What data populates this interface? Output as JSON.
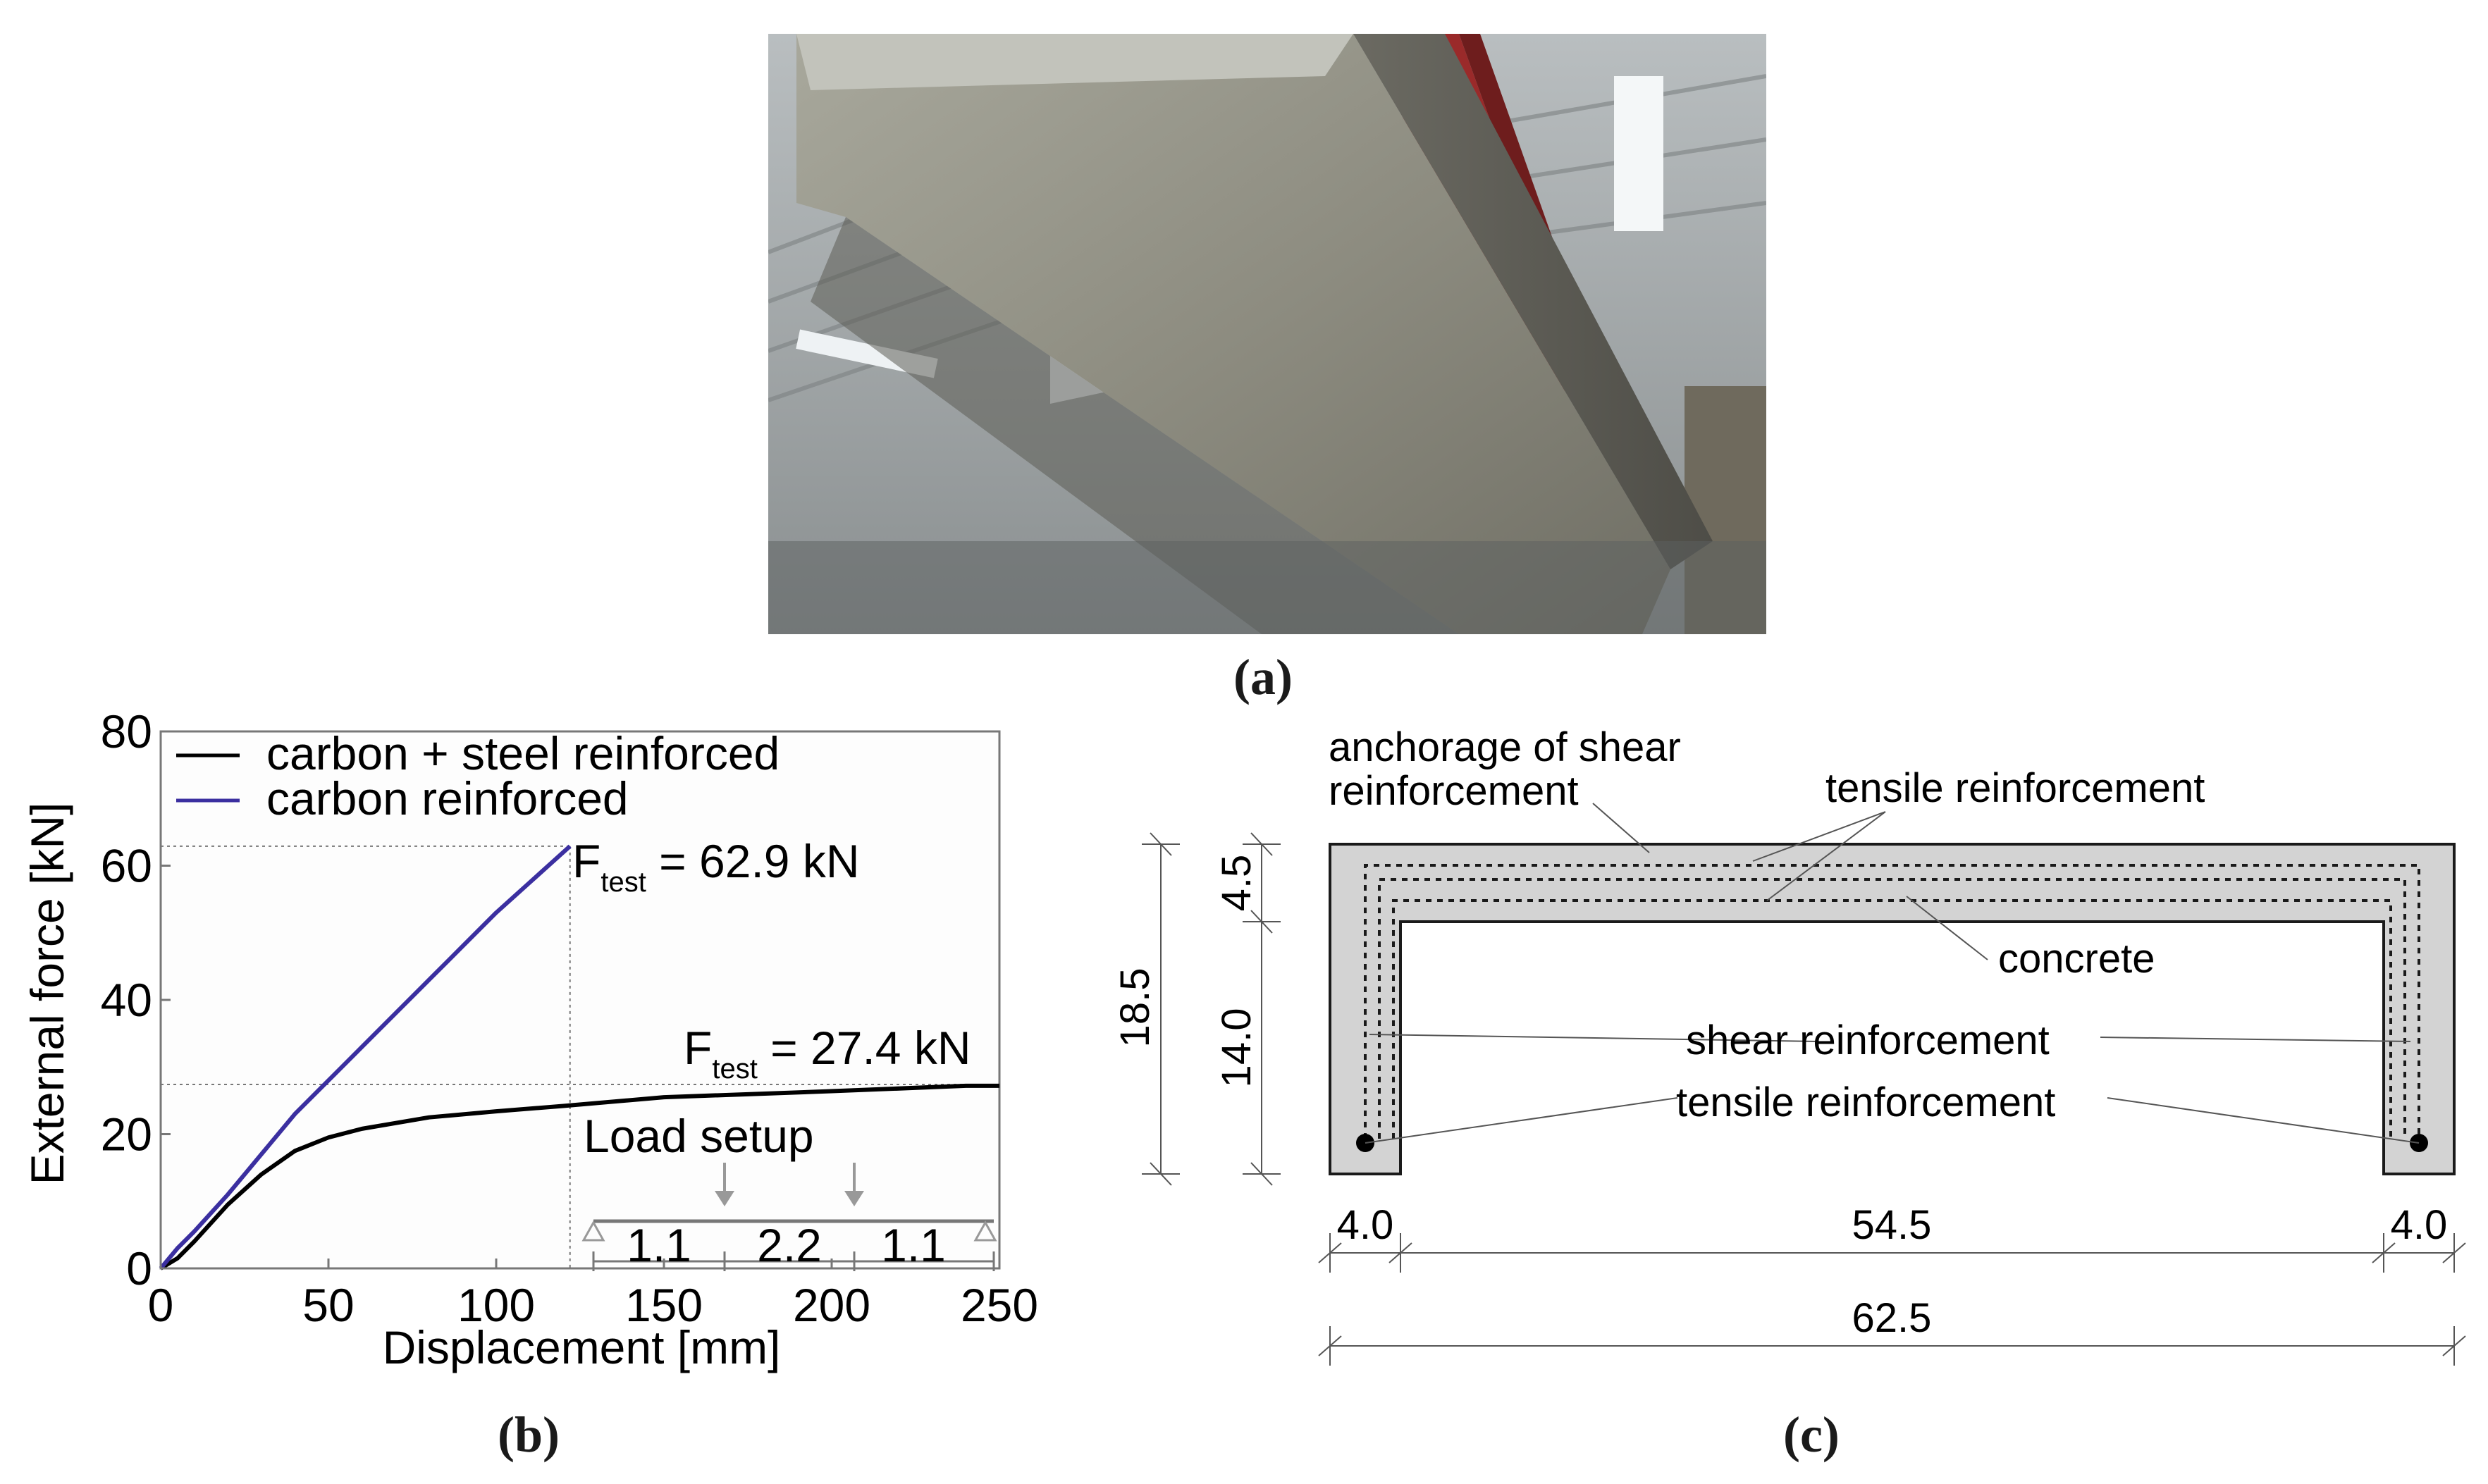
{
  "panels": {
    "a": "(a)",
    "b": "(b)",
    "c": "(c)"
  },
  "chart_data": {
    "type": "line",
    "xlabel": "Displacement [mm]",
    "ylabel": "External force [kN]",
    "xlim": [
      0,
      250
    ],
    "ylim": [
      0,
      80
    ],
    "xticks": [
      0,
      50,
      100,
      150,
      200,
      250
    ],
    "yticks": [
      0,
      20,
      40,
      60,
      80
    ],
    "legend_position": "top-left",
    "series": [
      {
        "name": "carbon + steel reinforced",
        "color": "#000000",
        "x": [
          0,
          5,
          10,
          20,
          30,
          40,
          50,
          60,
          80,
          100,
          120,
          150,
          200,
          240,
          250
        ],
        "y": [
          0,
          1.5,
          4,
          9.5,
          14,
          17.5,
          19.5,
          20.8,
          22.5,
          23.4,
          24.2,
          25.5,
          26.4,
          27.2,
          27.2
        ]
      },
      {
        "name": "carbon reinforced",
        "color": "#3b2fa0",
        "x": [
          0,
          5,
          10,
          20,
          30,
          40,
          50,
          60,
          70,
          80,
          90,
          100,
          110,
          122
        ],
        "y": [
          0,
          3,
          5.5,
          11,
          17,
          23,
          28,
          33,
          38,
          43,
          48,
          53,
          57.5,
          62.9
        ]
      }
    ],
    "annotations": {
      "ftest_carbon": {
        "symbol": "F",
        "sub": "test",
        "text": " = 62.9 kN",
        "x": 122,
        "y": 62.9
      },
      "ftest_steel": {
        "symbol": "F",
        "sub": "test",
        "text": " = 27.4 kN",
        "x": 250,
        "y": 27.4
      }
    },
    "load_setup": {
      "title": "Load setup",
      "spans": [
        "1.1",
        "2.2",
        "1.1"
      ]
    }
  },
  "section": {
    "labels": {
      "anchorage_1": "anchorage of shear",
      "anchorage_2": "reinforcement",
      "tensile_top": "tensile reinforcement",
      "concrete": "concrete",
      "shear": "shear reinforcement",
      "tensile_bottom": "tensile reinforcement"
    },
    "dims": {
      "total_height": "18.5",
      "flange": "4.5",
      "web_height": "14.0",
      "web_left": "4.0",
      "inner_width": "54.5",
      "web_right": "4.0",
      "total_width": "62.5"
    },
    "colors": {
      "concrete": "#d3d3d3",
      "line": "#1a1a1a"
    }
  }
}
